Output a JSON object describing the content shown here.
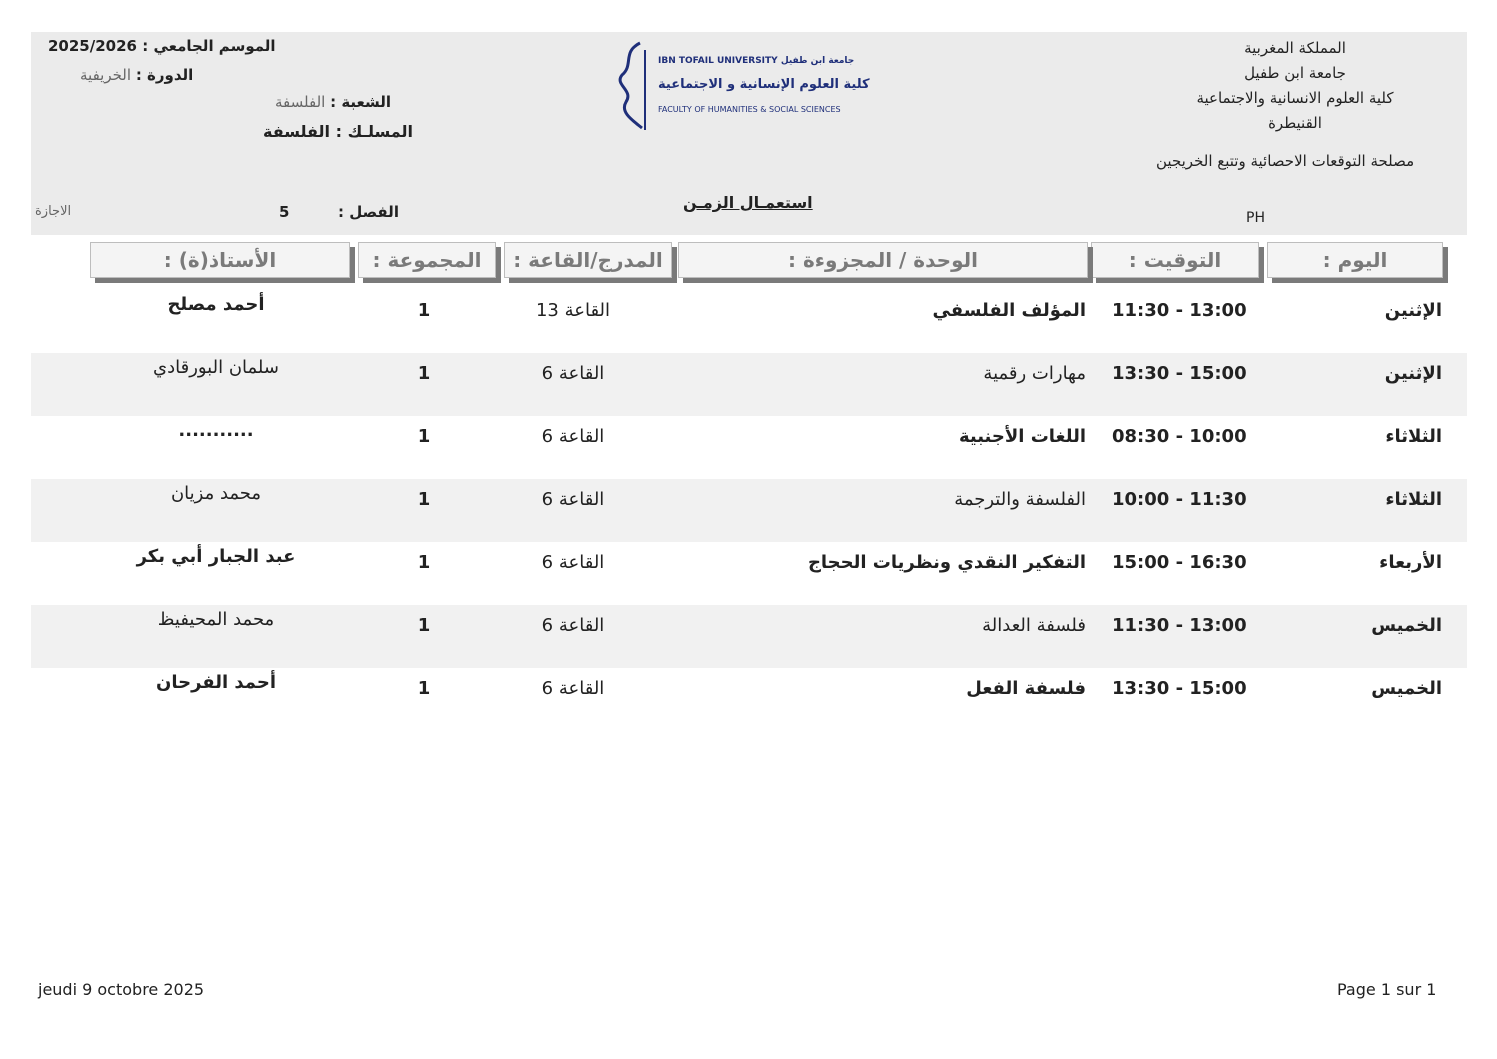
{
  "header": {
    "season_label": "الموسم الجامعي :",
    "season_value": "2025/2026",
    "session_label": "الدورة :",
    "session_value": "الخريفية",
    "branch_label": "الشعبة :",
    "branch_value": "الفلسفة",
    "track_label": "المسلـك :",
    "track_value": "الفلسفة",
    "semester_label": "الفصل :",
    "semester_value": "5",
    "degree": "الاجازة",
    "title": "استعمـال الزمـن",
    "code": "PH",
    "institution": [
      "المملكة المغربية",
      "جامعة ابن طفيل",
      "كلية العلوم الانسانية والاجتماعية",
      "القنيطرة"
    ],
    "service": "مصلحة التوقعات الاحصائية وتتبع الخريجين",
    "logo_text": [
      "IBN TOFAIL UNIVERSITY جامعة ابن طفيل",
      "كلية العلوم الإنسانية و الاجتماعية",
      "FACULTY OF HUMANITIES & SOCIAL SCIENCES"
    ],
    "logo_color": "#1f2f7a"
  },
  "columns": {
    "day": "اليوم :",
    "time": "التوقيت :",
    "module": "الوحدة / المجزوءة :",
    "room": "المدرج/القاعة :",
    "group": "المجموعة :",
    "teacher": "الأستاذ(ة) :"
  },
  "rows": [
    {
      "day": "الإثنين",
      "time": "11:30  -  13:00",
      "module": "المؤلف الفلسفي",
      "room": "القاعة 13",
      "group": "1",
      "teacher": "أحمد مصلح"
    },
    {
      "day": "الإثنين",
      "time": "13:30  -  15:00",
      "module": "مهارات رقمية",
      "room": "القاعة 6",
      "group": "1",
      "teacher": "سلمان البورقادي"
    },
    {
      "day": "الثلاثاء",
      "time": "08:30  -  10:00",
      "module": "اللغات الأجنبية",
      "room": "القاعة 6",
      "group": "1",
      "teacher": "..........."
    },
    {
      "day": "الثلاثاء",
      "time": "10:00  -  11:30",
      "module": "الفلسفة والترجمة",
      "room": "القاعة 6",
      "group": "1",
      "teacher": "محمد مزيان"
    },
    {
      "day": "الأربعاء",
      "time": "15:00  -  16:30",
      "module": "التفكير النقدي ونظريات الحجاج",
      "room": "القاعة 6",
      "group": "1",
      "teacher": "عبد الجبار أبي بكر"
    },
    {
      "day": "الخميس",
      "time": "11:30  -  13:00",
      "module": "فلسفة العدالة",
      "room": "القاعة 6",
      "group": "1",
      "teacher": "محمد المحيفيظ"
    },
    {
      "day": "الخميس",
      "time": "13:30  -  15:00",
      "module": "فلسفة الفعل",
      "room": "القاعة 6",
      "group": "1",
      "teacher": "أحمد الفرحان"
    }
  ],
  "footer": {
    "date": "jeudi 9 octobre 2025",
    "page": "Page 1 sur 1"
  }
}
